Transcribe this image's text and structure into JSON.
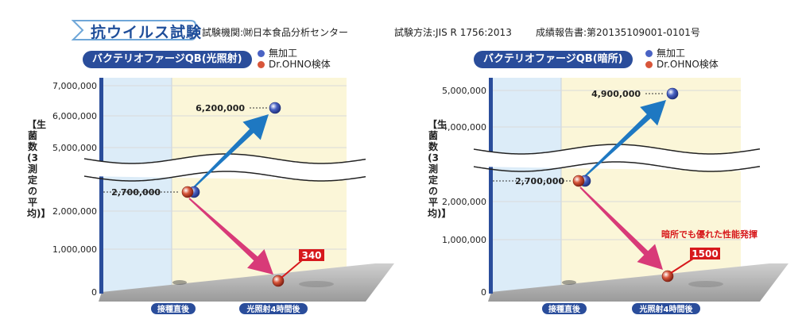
{
  "header": {
    "tag": "抗ウイルス試験",
    "org": "試験機関:㈶日本食品分析センター",
    "method": "試験方法:JIS R 1756:2013",
    "report": "成績報告書:第20135109001-0101号"
  },
  "legend": {
    "untreated": "無加工",
    "treated": "Dr.OHNO検体"
  },
  "colors": {
    "untreated": "#4a63c4",
    "treated": "#d8563a",
    "blue_arrow": "#1e78c2",
    "pink_arrow": "#d83a78",
    "label_red": "#d7191c",
    "axis_blue": "#2a4d9b"
  },
  "ylabel": "【生菌数(3測定の平均)】",
  "chart_data": [
    {
      "type": "scatter",
      "title": "バクテリオファージQB(光照射)",
      "categories": [
        "接種直後",
        "光照射4時間後"
      ],
      "ytick_labels": [
        "0",
        "1,000,000",
        "2,000,000",
        "5,000,000",
        "6,000,000",
        "7,000,000"
      ],
      "series": [
        {
          "name": "無加工",
          "values": [
            2700000,
            6200000
          ]
        },
        {
          "name": "Dr.OHNO検体",
          "values": [
            2700000,
            340
          ]
        }
      ],
      "value_labels": {
        "start": "2,700,000",
        "untreated_end": "6,200,000",
        "treated_end": "340"
      },
      "note": ""
    },
    {
      "type": "scatter",
      "title": "バクテリオファージQB(暗所)",
      "categories": [
        "接種直後",
        "光照射4時間後"
      ],
      "ytick_labels": [
        "0",
        "1,000,000",
        "2,000,000",
        "4,000,000",
        "5,000,000"
      ],
      "series": [
        {
          "name": "無加工",
          "values": [
            2700000,
            4900000
          ]
        },
        {
          "name": "Dr.OHNO検体",
          "values": [
            2700000,
            1500
          ]
        }
      ],
      "value_labels": {
        "start": "2,700,000",
        "untreated_end": "4,900,000",
        "treated_end": "1500"
      },
      "note": "暗所でも優れた性能発揮"
    }
  ]
}
